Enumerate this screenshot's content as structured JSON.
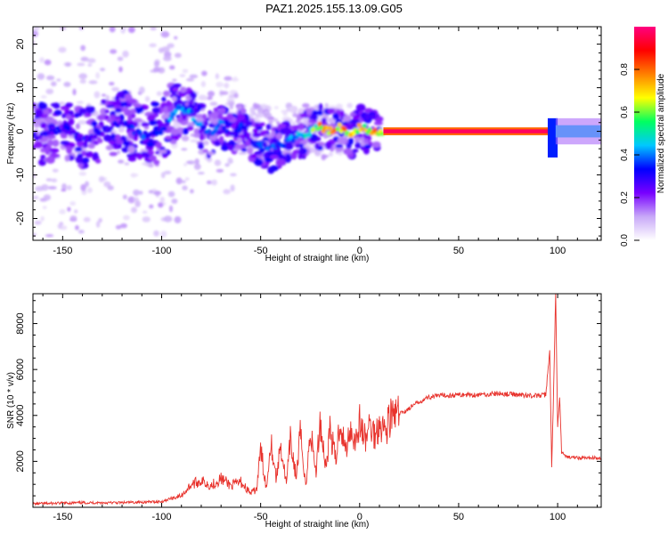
{
  "title": "PAZ1.2025.155.13.09.G05",
  "chart_data": [
    {
      "type": "heatmap",
      "xlabel": "Height of straight line (km)",
      "ylabel": "Frequency (Hz)",
      "xlim": [
        -165,
        122
      ],
      "ylim": [
        -25,
        24
      ],
      "xticks": [
        -150,
        -100,
        -50,
        0,
        50,
        100
      ],
      "yticks": [
        -20,
        -10,
        0,
        10,
        20
      ],
      "colorbar": {
        "label": "Normalized spectral amplitude",
        "range": [
          0,
          1
        ],
        "ticks": [
          0.0,
          0.2,
          0.4,
          0.6,
          0.8
        ],
        "colormap": [
          "#ffffff",
          "#c8a8f8",
          "#7800ff",
          "#0000ff",
          "#00c8ff",
          "#00ff60",
          "#ffff00",
          "#ff8000",
          "#ff0000",
          "#ff0080"
        ]
      },
      "ridge": {
        "x": [
          -160,
          -150,
          -140,
          -130,
          -120,
          -110,
          -100,
          -92,
          -85,
          -80,
          -75,
          -70,
          -65,
          -60,
          -55,
          -50,
          -45,
          -40,
          -35,
          -30,
          -25,
          -20,
          -15,
          -10,
          -5,
          0,
          5,
          10,
          20,
          40,
          60,
          80,
          95,
          100,
          110,
          122
        ],
        "freq": [
          -1,
          1,
          -2,
          0,
          2,
          -1,
          0,
          6,
          4,
          1,
          -1,
          2,
          -1,
          1,
          -2,
          -3,
          -4,
          -3,
          -2,
          -1,
          0,
          1,
          0,
          1,
          -1,
          1,
          0,
          0,
          0,
          0,
          0,
          0,
          0,
          0,
          0,
          0
        ],
        "amplitude": [
          0.32,
          0.3,
          0.33,
          0.3,
          0.34,
          0.36,
          0.38,
          0.45,
          0.48,
          0.42,
          0.35,
          0.4,
          0.32,
          0.35,
          0.3,
          0.38,
          0.4,
          0.38,
          0.42,
          0.45,
          0.55,
          0.75,
          0.85,
          0.8,
          0.75,
          0.75,
          0.7,
          0.8,
          0.95,
          0.97,
          0.97,
          0.96,
          0.95,
          0.45,
          0.42,
          0.4
        ]
      }
    },
    {
      "type": "line",
      "xlabel": "Height of straight line (km)",
      "ylabel": "SNR (10 * v/v)",
      "xlim": [
        -165,
        122
      ],
      "ylim": [
        0,
        9300
      ],
      "xticks": [
        -150,
        -100,
        -50,
        0,
        50,
        100
      ],
      "yticks": [
        2000,
        4000,
        6000,
        8000
      ],
      "color": "#e8322c",
      "series": [
        {
          "x": [
            -165,
            -140,
            -120,
            -100,
            -95,
            -90,
            -85,
            -80,
            -75,
            -70,
            -65,
            -60,
            -55,
            -52,
            -50,
            -47,
            -45,
            -42,
            -40,
            -37,
            -35,
            -32,
            -30,
            -27,
            -25,
            -22,
            -20,
            -17,
            -15,
            -12,
            -10,
            -7,
            -5,
            -2,
            0,
            3,
            5,
            8,
            10,
            13,
            15,
            20,
            25,
            30,
            35,
            40,
            50,
            60,
            70,
            80,
            90,
            94,
            96,
            97,
            98,
            99,
            100,
            101,
            102,
            104,
            110,
            122
          ],
          "values": [
            150,
            200,
            200,
            250,
            400,
            500,
            1000,
            1150,
            950,
            1250,
            950,
            1100,
            600,
            800,
            2500,
            800,
            3000,
            1200,
            2800,
            1000,
            2900,
            1300,
            3200,
            900,
            3400,
            1500,
            3800,
            1700,
            3400,
            2000,
            3800,
            2400,
            3500,
            2900,
            3700,
            2900,
            3600,
            3100,
            3800,
            3300,
            3900,
            4050,
            4300,
            4600,
            4800,
            4850,
            4900,
            4900,
            4950,
            4900,
            4850,
            4900,
            6800,
            1700,
            5200,
            9300,
            3500,
            4800,
            2400,
            2200,
            2150,
            2150
          ]
        }
      ]
    }
  ]
}
